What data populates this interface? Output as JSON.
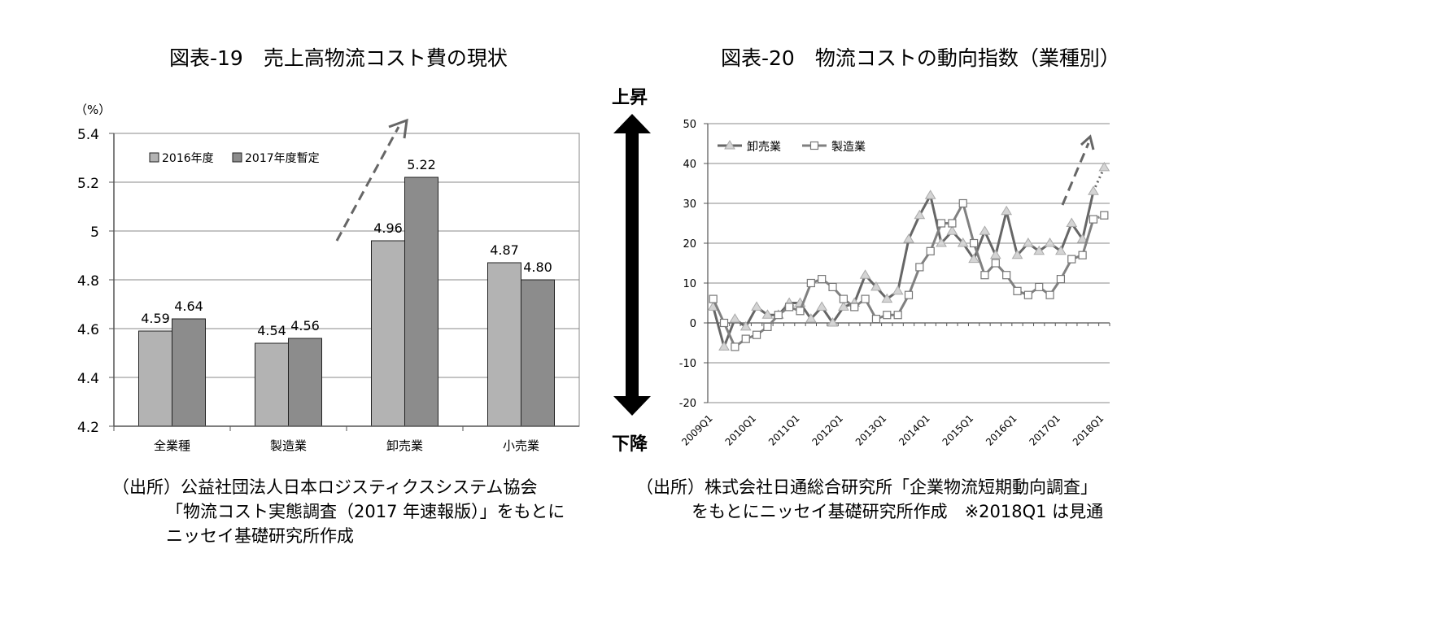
{
  "left": {
    "title": "図表-19　売上高物流コスト費の現状",
    "unit": "（%）",
    "source": [
      "（出所）公益社団法人日本ロジスティクスシステム協会",
      "「物流コスト実態調査（2017 年速報版）」をもとに",
      "ニッセイ基礎研究所作成"
    ]
  },
  "right": {
    "title": "図表-20　物流コストの動向指数（業種別）",
    "up_label": "上昇",
    "down_label": "下降",
    "source": [
      "（出所）株式会社日通総合研究所「企業物流短期動向調査」",
      "をもとにニッセイ基礎研究所作成　※2018Q1 は見通"
    ]
  },
  "chart_data": [
    {
      "type": "bar",
      "categories": [
        "全業種",
        "製造業",
        "卸売業",
        "小売業"
      ],
      "series": [
        {
          "name": "2016年度",
          "values": [
            4.59,
            4.54,
            4.96,
            4.87
          ],
          "labels": [
            "4.59",
            "4.54",
            "4.96",
            "4.87"
          ],
          "color": "#b3b3b3"
        },
        {
          "name": "2017年度暫定",
          "values": [
            4.64,
            4.56,
            5.22,
            4.8
          ],
          "labels": [
            "4.64",
            "4.56",
            "5.22",
            "4.80"
          ],
          "color": "#8c8c8c"
        }
      ],
      "ylim": [
        4.2,
        5.4
      ],
      "yticks": [
        4.2,
        4.4,
        4.6,
        4.8,
        5.0,
        5.2,
        5.4
      ],
      "ytick_labels": [
        "4.2",
        "4.4",
        "4.6",
        "4.8",
        "5",
        "5.2",
        "5.4"
      ],
      "grid": true,
      "legend": "top-left"
    },
    {
      "type": "line",
      "x_labels": [
        "2009Q1",
        "2010Q1",
        "2011Q1",
        "2012Q1",
        "2013Q1",
        "2014Q1",
        "2015Q1",
        "2016Q1",
        "2017Q1",
        "2018Q1"
      ],
      "series": [
        {
          "name": "卸売業",
          "marker": "triangle",
          "color": "#666666",
          "values": [
            4,
            -6,
            1,
            -1,
            4,
            2,
            2,
            5,
            5,
            1,
            4,
            0,
            4,
            5,
            12,
            9,
            6,
            8,
            21,
            27,
            32,
            20,
            23,
            20,
            16,
            23,
            17,
            28,
            17,
            20,
            18,
            20,
            18,
            25,
            21,
            33,
            39
          ]
        },
        {
          "name": "製造業",
          "marker": "square",
          "color": "#808080",
          "values": [
            6,
            0,
            -6,
            -4,
            -3,
            -1,
            2,
            4,
            3,
            10,
            11,
            9,
            6,
            4,
            6,
            1,
            2,
            2,
            7,
            14,
            18,
            25,
            25,
            30,
            20,
            12,
            15,
            12,
            8,
            7,
            9,
            7,
            11,
            16,
            17,
            26,
            27
          ]
        }
      ],
      "ylim": [
        -20,
        50
      ],
      "yticks": [
        -20,
        -10,
        0,
        10,
        20,
        30,
        40,
        50
      ],
      "ytick_labels": [
        "-20",
        "-10",
        "0",
        "10",
        "20",
        "30",
        "40",
        "50"
      ],
      "grid": true,
      "legend": "top-left"
    }
  ]
}
